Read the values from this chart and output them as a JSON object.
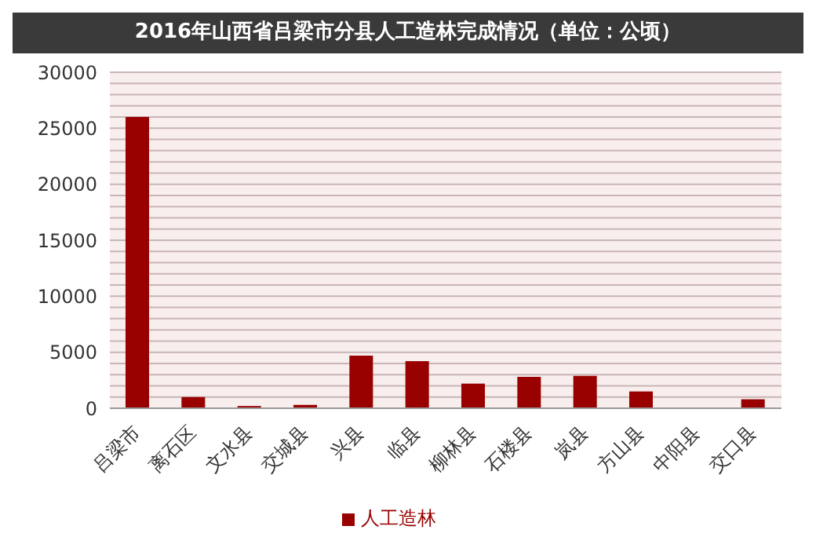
{
  "chart_data": {
    "type": "bar",
    "title": "2016年山西省吕梁市分县人工造林完成情况（单位：公顷）",
    "categories": [
      "吕梁市",
      "离石区",
      "文水县",
      "交城县",
      "兴县",
      "临县",
      "柳林县",
      "石楼县",
      "岚县",
      "方山县",
      "中阳县",
      "交口县"
    ],
    "series": [
      {
        "name": "人工造林",
        "color": "#990000",
        "values": [
          26000,
          1000,
          200,
          300,
          4700,
          4200,
          2200,
          2800,
          2900,
          1500,
          0,
          800
        ]
      }
    ],
    "ylim": [
      0,
      30000
    ],
    "yticks": [
      0,
      {
        "value": 1000,
        "label": null
      },
      {
        "value": 2000,
        "label": null
      },
      {
        "value": 3000,
        "label": null
      },
      {
        "value": 4000,
        "label": null
      },
      5000,
      {
        "value": 6000,
        "label": null
      },
      {
        "value": 7000,
        "label": null
      },
      {
        "value": 8000,
        "label": null
      },
      {
        "value": 9000,
        "label": null
      },
      10000,
      {
        "value": 11000,
        "label": null
      },
      {
        "value": 12000,
        "label": null
      },
      {
        "value": 13000,
        "label": null
      },
      {
        "value": 14000,
        "label": null
      },
      15000,
      {
        "value": 16000,
        "label": null
      },
      {
        "value": 17000,
        "label": null
      },
      {
        "value": 18000,
        "label": null
      },
      {
        "value": 19000,
        "label": null
      },
      20000,
      {
        "value": 21000,
        "label": null
      },
      {
        "value": 22000,
        "label": null
      },
      {
        "value": 23000,
        "label": null
      },
      {
        "value": 24000,
        "label": null
      },
      25000,
      {
        "value": 26000,
        "label": null
      },
      {
        "value": 27000,
        "label": null
      },
      {
        "value": 28000,
        "label": null
      },
      {
        "value": 29000,
        "label": null
      },
      30000
    ],
    "grid": "y",
    "legend": "bottom"
  }
}
